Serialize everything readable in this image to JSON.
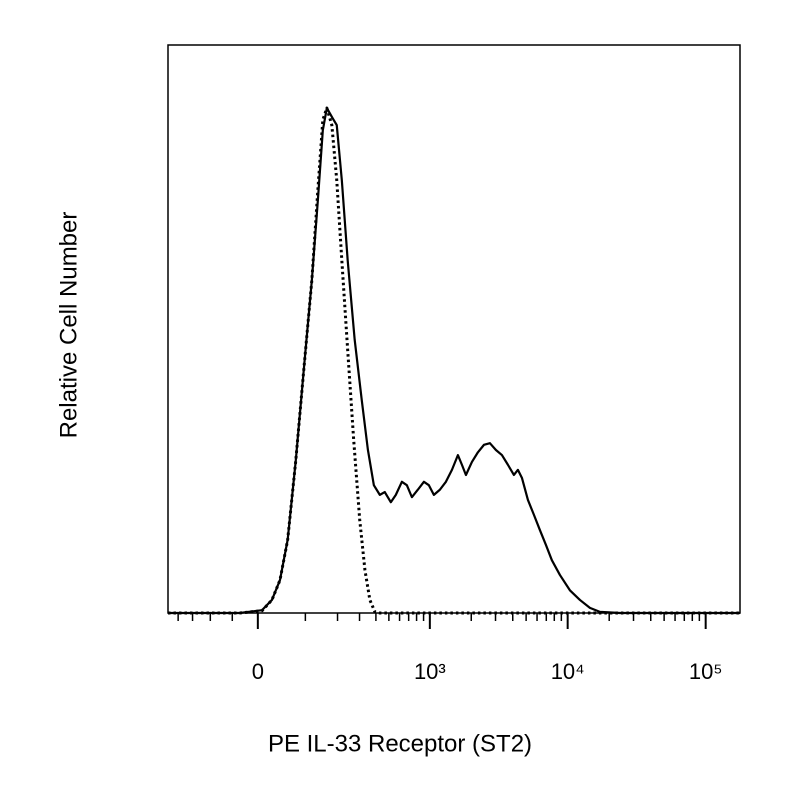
{
  "chart_data": {
    "type": "line",
    "xlabel": "PE IL-33 Receptor (ST2)",
    "ylabel": "Relative Cell Number",
    "xscale": "biexponential",
    "xlim": [
      -242,
      177300
    ],
    "ylim": [
      0,
      100
    ],
    "xticks": [
      0,
      {
        "value": 1000,
        "label": "10³"
      },
      {
        "value": 10000,
        "label": "10⁴"
      },
      {
        "value": 100000,
        "label": "10⁵"
      }
    ],
    "xminorticks": [
      -200,
      -150,
      -100,
      -50,
      100,
      200,
      300,
      400,
      500,
      600,
      700,
      800,
      900,
      2000,
      3000,
      4000,
      5000,
      6000,
      7000,
      8000,
      9000,
      20000,
      30000,
      40000,
      50000,
      60000,
      70000,
      80000,
      90000
    ],
    "series": [
      {
        "color": "#000000",
        "style": "solid",
        "x": [
          -242,
          -35,
          8,
          27,
          43,
          59,
          77,
          96,
          117,
          134,
          149,
          162,
          182,
          197,
          217,
          242,
          275,
          312,
          348,
          386,
          428,
          466,
          517,
          563,
          624,
          679,
          739,
          817,
          905,
          984,
          1070,
          1183,
          1309,
          1448,
          1600,
          1711,
          1830,
          2023,
          2236,
          2472,
          2732,
          3020,
          3339,
          3689,
          4077,
          4360,
          4661,
          5152,
          5692,
          6292,
          6953,
          7682,
          8785,
          10378,
          12268,
          14498,
          17138,
          23932,
          177300
        ],
        "values": [
          0,
          0,
          0.5,
          2.3,
          5.8,
          12.9,
          26.9,
          42.8,
          58.6,
          72.7,
          85.0,
          88.9,
          87.1,
          85.9,
          76.2,
          62.1,
          48.1,
          37.5,
          28.7,
          22.5,
          20.8,
          21.3,
          19.5,
          20.8,
          23.1,
          22.5,
          20.4,
          21.7,
          23.1,
          22.5,
          20.8,
          21.7,
          23.1,
          25.2,
          27.8,
          26.1,
          24.3,
          26.6,
          28.3,
          29.6,
          29.9,
          28.7,
          27.8,
          26.1,
          24.3,
          25.2,
          23.8,
          19.9,
          17.3,
          14.6,
          12.0,
          9.3,
          6.7,
          4.0,
          2.3,
          0.9,
          0.2,
          0,
          0
        ]
      },
      {
        "color": "#000000",
        "style": "dotted",
        "x": [
          -242,
          -35,
          8,
          27,
          43,
          59,
          77,
          96,
          117,
          134,
          149,
          162,
          179,
          197,
          217,
          242,
          270,
          301,
          330,
          360,
          393,
          428,
          177300
        ],
        "values": [
          0,
          0,
          0.4,
          2.3,
          5.8,
          12.9,
          26.9,
          42.8,
          58.6,
          74.5,
          86.8,
          88.9,
          85.9,
          76.2,
          62.1,
          46.3,
          30.5,
          16.4,
          7.6,
          2.3,
          0.2,
          0,
          0
        ]
      }
    ]
  }
}
